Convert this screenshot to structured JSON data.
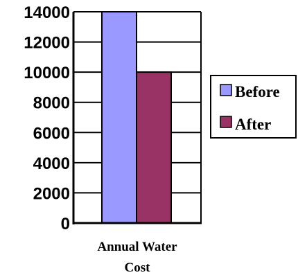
{
  "chart_data": {
    "type": "bar",
    "categories": [
      "Annual Water Cost"
    ],
    "category_label_lines": [
      "Annual Water",
      "Cost"
    ],
    "series": [
      {
        "name": "Before",
        "color": "#9999ff",
        "values": [
          14000
        ]
      },
      {
        "name": "After",
        "color": "#993366",
        "values": [
          10000
        ]
      }
    ],
    "ylim": [
      0,
      14000
    ],
    "y_ticks": [
      0,
      2000,
      4000,
      6000,
      8000,
      10000,
      12000,
      14000
    ],
    "y_tick_labels": [
      "0",
      "2000",
      "4000",
      "6000",
      "8000",
      "10000",
      "12000",
      "14000"
    ],
    "grid": true,
    "legend_position": "right"
  }
}
